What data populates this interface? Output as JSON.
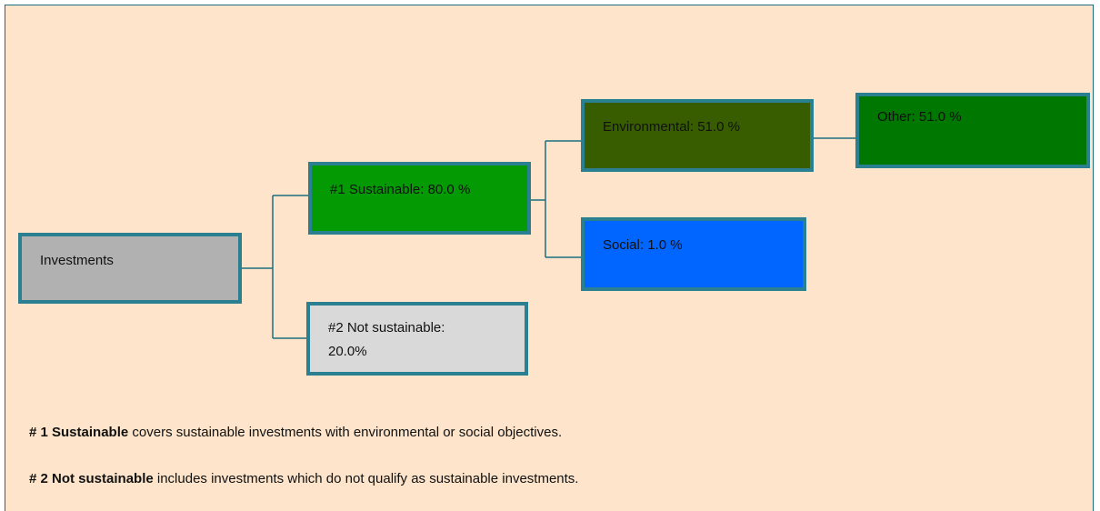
{
  "nodes": [
    {
      "id": "investments",
      "label": [
        "Investments"
      ]
    },
    {
      "id": "sustainable",
      "label": [
        "#1 Sustainable: 80.0 %"
      ]
    },
    {
      "id": "not_sustainable",
      "label": [
        "#2 Not sustainable:",
        "20.0%"
      ]
    },
    {
      "id": "environmental",
      "label": [
        "Environmental:  51.0 %"
      ]
    },
    {
      "id": "social",
      "label": [
        "Social:  1.0 %"
      ]
    },
    {
      "id": "other",
      "label": [
        "Other: 51.0 %"
      ]
    }
  ],
  "notes": [
    {
      "bold": "# 1 Sustainable",
      "text": " covers sustainable investments with environmental or social objectives."
    },
    {
      "bold": "# 2 Not sustainable",
      "text": " includes investments which do not qualify as sustainable investments."
    }
  ]
}
